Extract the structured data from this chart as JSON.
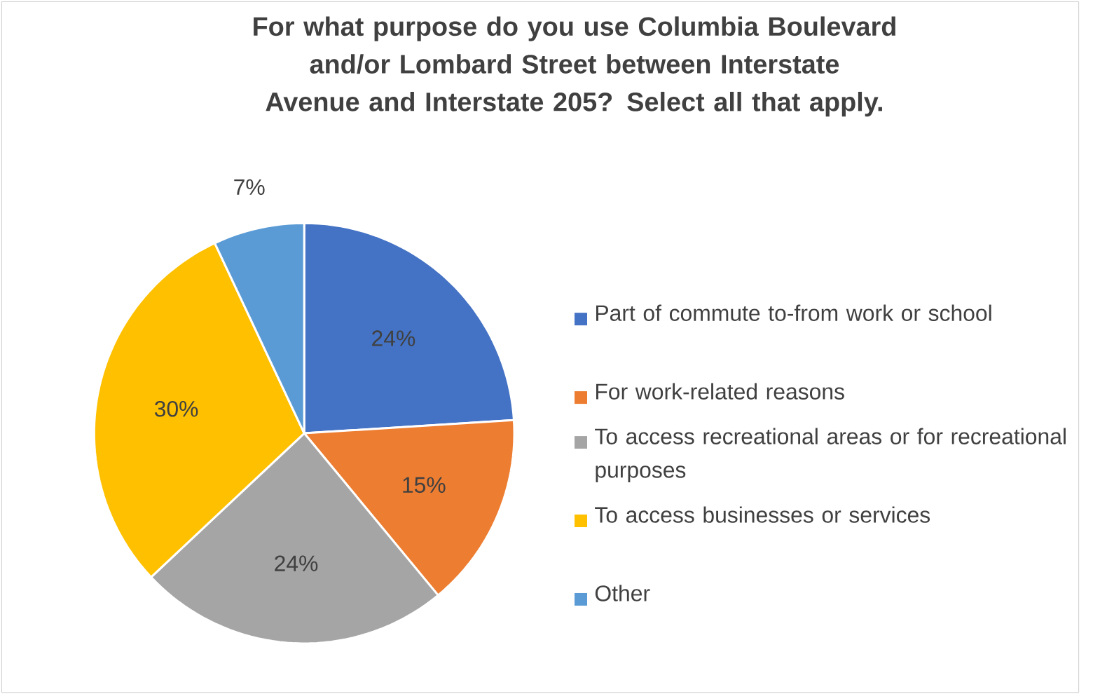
{
  "chart_data": {
    "type": "pie",
    "title": "For what purpose do you use Columbia Boulevard and/or Lombard Street between Interstate Avenue and Interstate 205? Select all that apply.",
    "categories": [
      "Part of commute to-from work or school",
      "For work-related reasons",
      "To access recreational areas or for recreational purposes",
      "To access businesses or services",
      "Other"
    ],
    "values": [
      24,
      15,
      24,
      30,
      7
    ],
    "colors": [
      "#4472c4",
      "#ed7d31",
      "#a5a5a5",
      "#ffc000",
      "#5b9bd5"
    ],
    "value_labels": [
      "24%",
      "15%",
      "24%",
      "30%",
      "7%"
    ],
    "legend": "right"
  }
}
